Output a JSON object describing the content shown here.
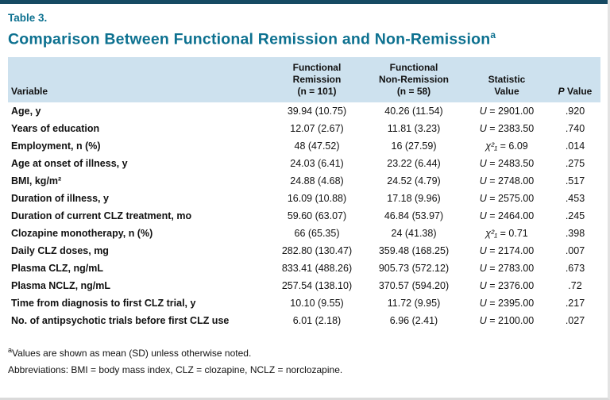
{
  "accent": {
    "top_bar_color": "#164a63",
    "title_color": "#0d7190",
    "header_bg": "#cde1ee"
  },
  "header": {
    "table_label": "Table 3.",
    "title": "Comparison Between Functional Remission and Non-Remission",
    "title_sup": "a"
  },
  "columns": {
    "variable": "Variable",
    "remission": [
      "Functional",
      "Remission",
      "(n = 101)"
    ],
    "non_remission": [
      "Functional",
      "Non-Remission",
      "(n = 58)"
    ],
    "statistic": [
      "Statistic",
      "Value"
    ],
    "p_italic": "P",
    "p_rest": " Value"
  },
  "rows": [
    {
      "variable": "Age, y",
      "remission": "39.94 (10.75)",
      "non_remission": "40.26 (11.54)",
      "stat_var": "U",
      "stat_rest": " = 2901.00",
      "p": ".920"
    },
    {
      "variable": "Years of education",
      "remission": "12.07 (2.67)",
      "non_remission": "11.81 (3.23)",
      "stat_var": "U",
      "stat_rest": " = 2383.50",
      "p": ".740"
    },
    {
      "variable": "Employment, n (%)",
      "remission": "48 (47.52)",
      "non_remission": "16 (27.59)",
      "stat_var": "χ²₁",
      "stat_rest": " = 6.09",
      "p": ".014"
    },
    {
      "variable": "Age at onset of illness, y",
      "remission": "24.03 (6.41)",
      "non_remission": "23.22 (6.44)",
      "stat_var": "U",
      "stat_rest": " = 2483.50",
      "p": ".275"
    },
    {
      "variable": "BMI, kg/m²",
      "remission": "24.88 (4.68)",
      "non_remission": "24.52 (4.79)",
      "stat_var": "U",
      "stat_rest": " = 2748.00",
      "p": ".517"
    },
    {
      "variable": "Duration of illness, y",
      "remission": "16.09 (10.88)",
      "non_remission": "17.18 (9.96)",
      "stat_var": "U",
      "stat_rest": " = 2575.00",
      "p": ".453"
    },
    {
      "variable": "Duration of current CLZ treatment, mo",
      "remission": "59.60 (63.07)",
      "non_remission": "46.84 (53.97)",
      "stat_var": "U",
      "stat_rest": " = 2464.00",
      "p": ".245"
    },
    {
      "variable": "Clozapine monotherapy, n (%)",
      "remission": "66 (65.35)",
      "non_remission": "24 (41.38)",
      "stat_var": "χ²₁",
      "stat_rest": " = 0.71",
      "p": ".398"
    },
    {
      "variable": "Daily CLZ doses, mg",
      "remission": "282.80 (130.47)",
      "non_remission": "359.48 (168.25)",
      "stat_var": "U",
      "stat_rest": " = 2174.00",
      "p": ".007"
    },
    {
      "variable": "Plasma CLZ, ng/mL",
      "remission": "833.41 (488.26)",
      "non_remission": "905.73 (572.12)",
      "stat_var": "U",
      "stat_rest": " = 2783.00",
      "p": ".673"
    },
    {
      "variable": "Plasma NCLZ, ng/mL",
      "remission": "257.54 (138.10)",
      "non_remission": "370.57 (594.20)",
      "stat_var": "U",
      "stat_rest": " = 2376.00",
      "p": ".72"
    },
    {
      "variable": "Time from diagnosis to first CLZ trial, y",
      "remission": "10.10 (9.55)",
      "non_remission": "11.72 (9.95)",
      "stat_var": "U",
      "stat_rest": " = 2395.00",
      "p": ".217"
    },
    {
      "variable": "No. of antipsychotic trials before first CLZ use",
      "remission": "6.01 (2.18)",
      "non_remission": "6.96 (2.41)",
      "stat_var": "U",
      "stat_rest": " = 2100.00",
      "p": ".027"
    }
  ],
  "footnotes": [
    {
      "sup": "a",
      "text": "Values are shown as mean (SD) unless otherwise noted."
    },
    {
      "sup": "",
      "text": "Abbreviations: BMI = body mass index, CLZ = clozapine, NCLZ = norclozapine."
    }
  ]
}
